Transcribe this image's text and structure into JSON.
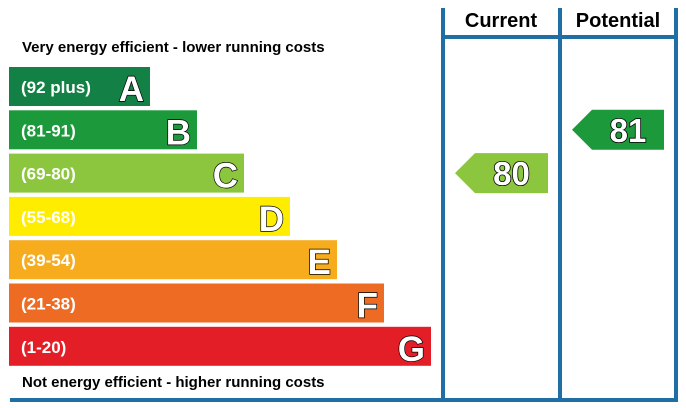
{
  "chart_data": {
    "type": "bar",
    "header_top": "Very energy efficient - lower running costs",
    "footer_bottom": "Not energy efficient - higher running costs",
    "columns": {
      "current_label": "Current",
      "potential_label": "Potential"
    },
    "categories": [
      "A",
      "B",
      "C",
      "D",
      "E",
      "F",
      "G"
    ],
    "bands": [
      {
        "letter": "A",
        "range": "(92 plus)",
        "min": 92,
        "max": 100,
        "color": "#138045"
      },
      {
        "letter": "B",
        "range": "(81-91)",
        "min": 81,
        "max": 91,
        "color": "#1c9a3b"
      },
      {
        "letter": "C",
        "range": "(69-80)",
        "min": 69,
        "max": 80,
        "color": "#8cc63f"
      },
      {
        "letter": "D",
        "range": "(55-68)",
        "min": 55,
        "max": 68,
        "color": "#ffed00"
      },
      {
        "letter": "E",
        "range": "(39-54)",
        "min": 39,
        "max": 54,
        "color": "#f7ac1e"
      },
      {
        "letter": "F",
        "range": "(21-38)",
        "min": 21,
        "max": 38,
        "color": "#ee6b24"
      },
      {
        "letter": "G",
        "range": "(1-20)",
        "min": 1,
        "max": 20,
        "color": "#e41e26"
      }
    ],
    "current": {
      "value": 80,
      "label": "80",
      "band": "C",
      "color": "#8cc63f"
    },
    "potential": {
      "value": 81,
      "label": "81",
      "band": "B",
      "color": "#1c9a3b"
    },
    "frame_color": "#1f6fa4"
  }
}
